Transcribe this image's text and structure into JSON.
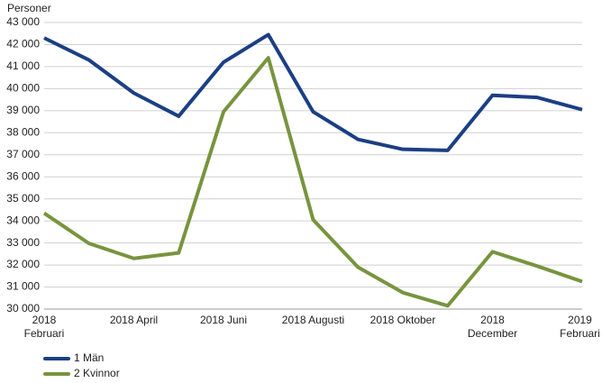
{
  "chart_data": {
    "type": "line",
    "y_label": "Personer",
    "categories": [
      "2018\nFebruari",
      null,
      "2018 April",
      null,
      "2018 Juni",
      null,
      "2018 Augusti",
      null,
      "2018 Oktober",
      null,
      "2018\nDecember",
      null,
      "2019\nFebruari"
    ],
    "series": [
      {
        "name": "1 Män",
        "color": "#1b3f84",
        "values": [
          42300,
          41300,
          39800,
          38750,
          41200,
          42450,
          38950,
          37700,
          37250,
          37200,
          39700,
          39600,
          39050
        ]
      },
      {
        "name": "2 Kvinnor",
        "color": "#78943e",
        "values": [
          34350,
          32980,
          32300,
          32550,
          38950,
          41400,
          34050,
          31900,
          30750,
          30150,
          32600,
          31950,
          31250
        ]
      }
    ],
    "ylim": [
      30000,
      43000
    ],
    "yticks": [
      {
        "value": 30000,
        "label": "30 000"
      },
      {
        "value": 31000,
        "label": "31 000"
      },
      {
        "value": 32000,
        "label": "32 000"
      },
      {
        "value": 33000,
        "label": "33 000"
      },
      {
        "value": 34000,
        "label": "34 000"
      },
      {
        "value": 35000,
        "label": "35 000"
      },
      {
        "value": 36000,
        "label": "36 000"
      },
      {
        "value": 37000,
        "label": "37 000"
      },
      {
        "value": 38000,
        "label": "38 000"
      },
      {
        "value": 39000,
        "label": "39 000"
      },
      {
        "value": 40000,
        "label": "40 000"
      },
      {
        "value": 41000,
        "label": "41 000"
      },
      {
        "value": 42000,
        "label": "42 000"
      },
      {
        "value": 43000,
        "label": "43 000"
      }
    ],
    "grid": true,
    "legend": "bottom-left"
  }
}
